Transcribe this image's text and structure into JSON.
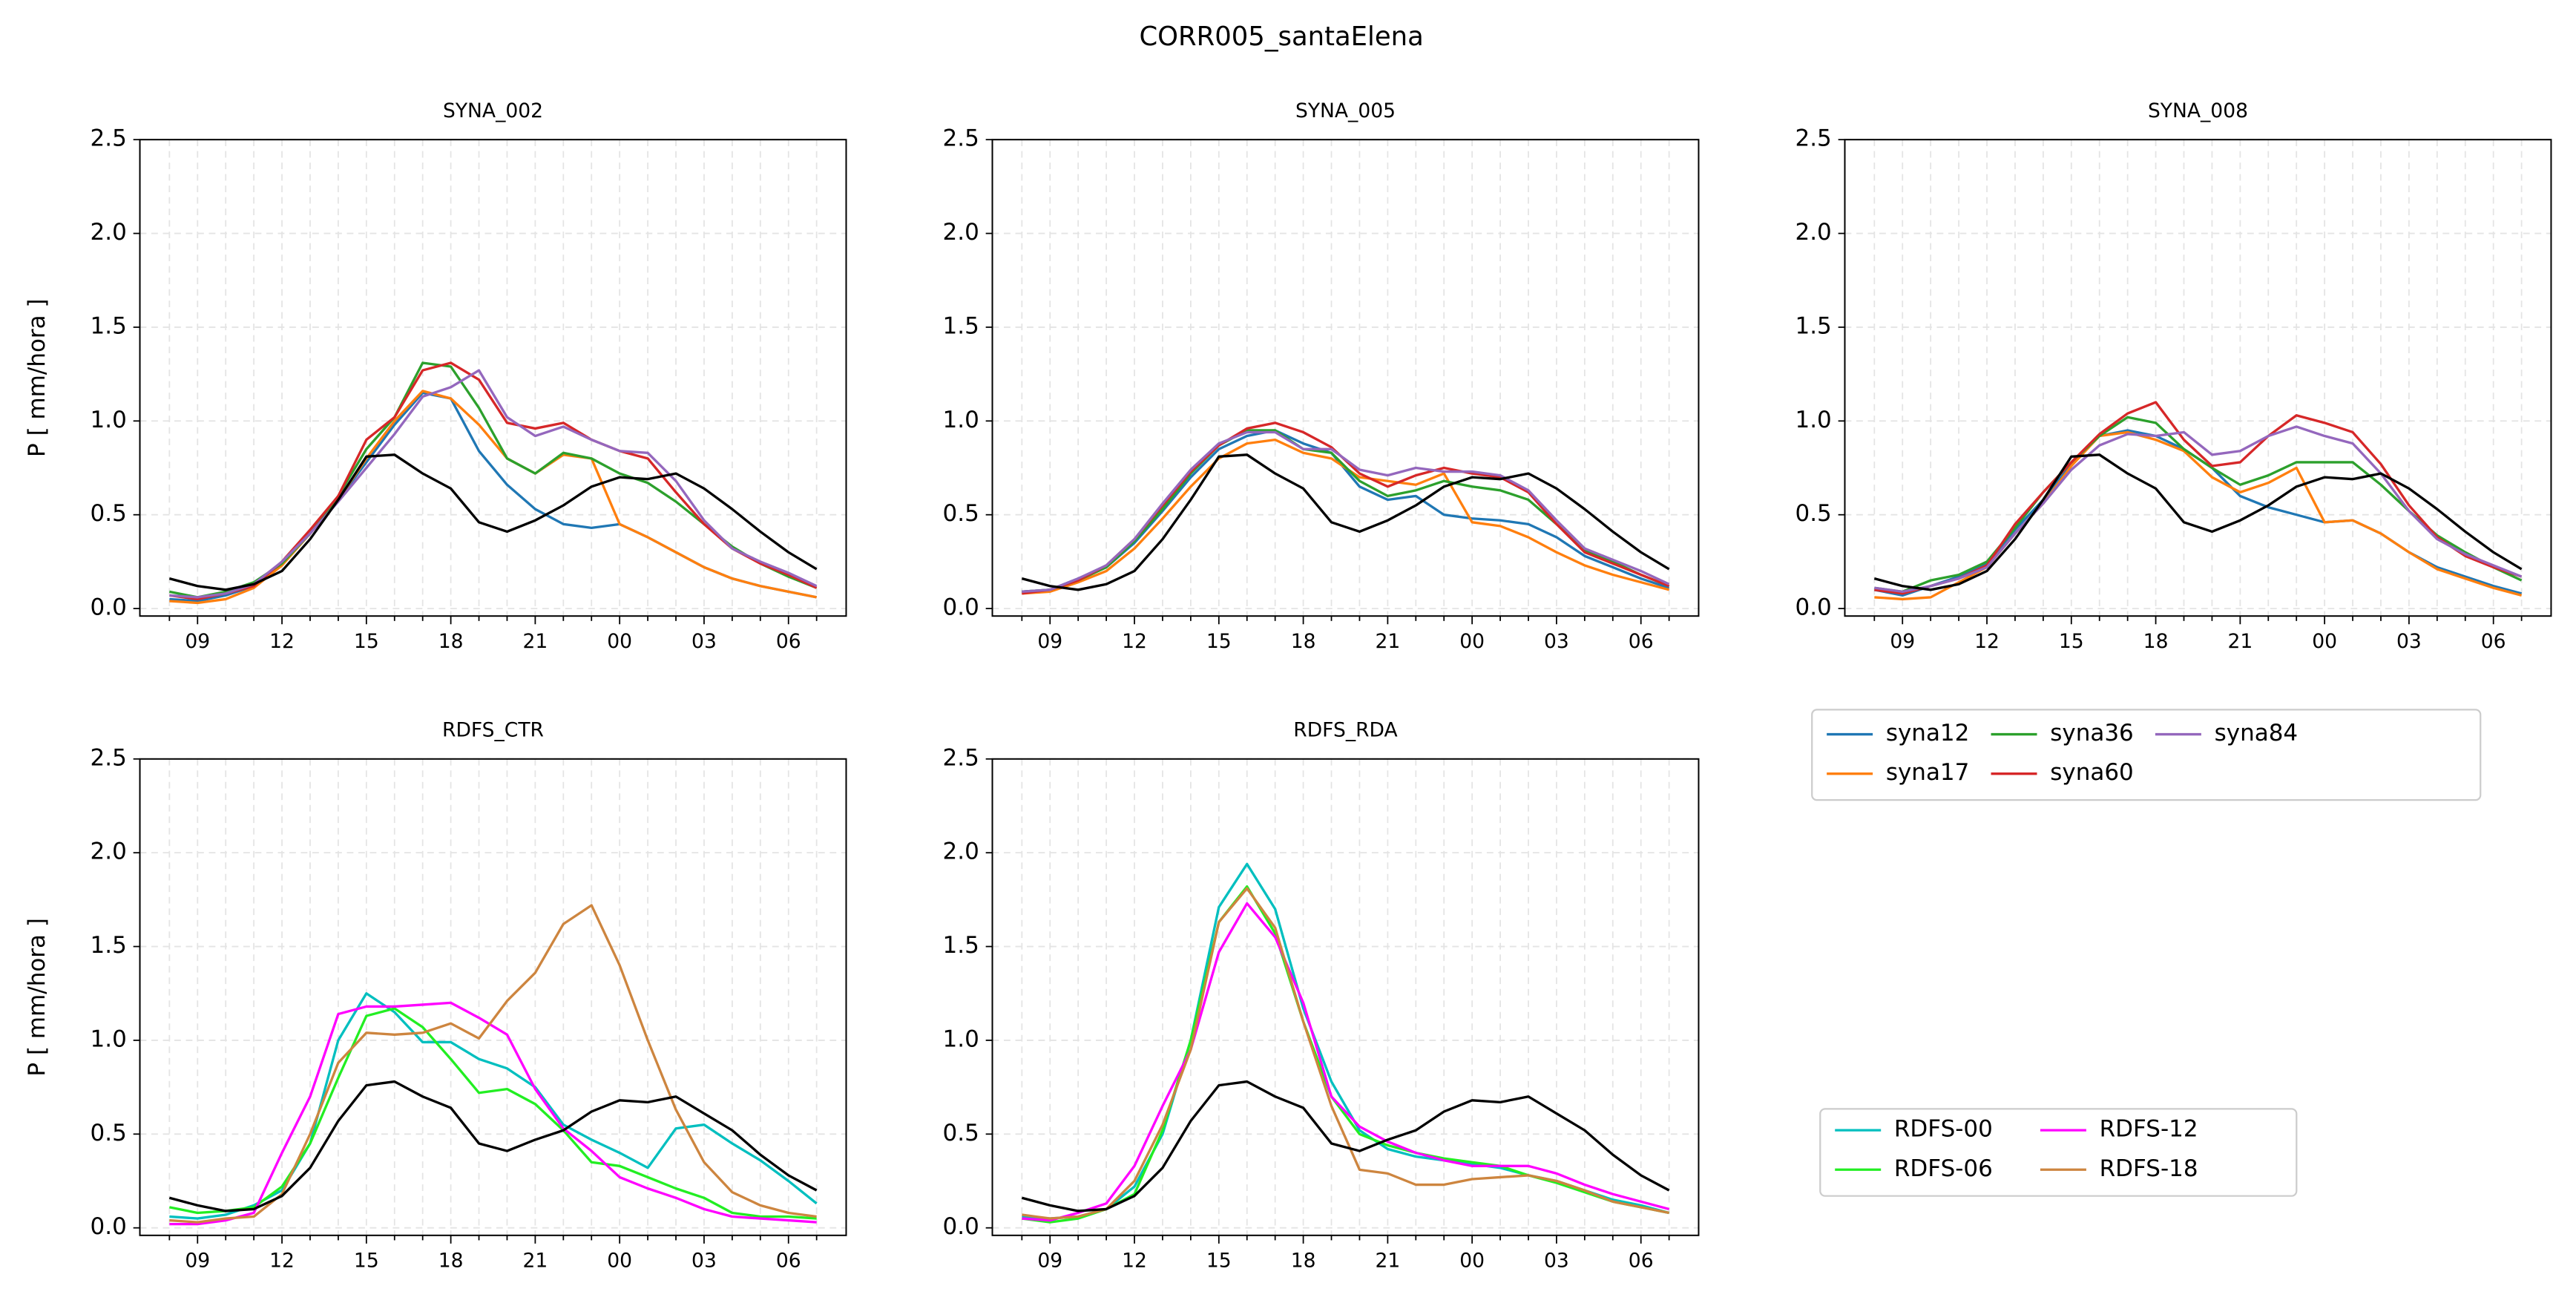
{
  "title": "CORR005_santaElena",
  "chart_data": [
    {
      "type": "line",
      "title": "SYNA_002",
      "y_label": "P [ mm/hora ]",
      "categories": [
        null,
        "09",
        null,
        null,
        "12",
        null,
        null,
        "15",
        null,
        null,
        "18",
        null,
        null,
        "21",
        null,
        null,
        "00",
        null,
        null,
        "03",
        null,
        null,
        "06",
        null
      ],
      "ylim": [
        -0.04,
        2.5
      ],
      "yticks": [
        {
          "value": 0,
          "label": "0.0"
        },
        0.5,
        {
          "value": 1,
          "label": "1.0"
        },
        1.5,
        {
          "value": 2,
          "label": "2.0"
        },
        2.5
      ],
      "grid": true,
      "series": [
        {
          "name": "syna12",
          "color": "#1f77b4",
          "values": [
            0.05,
            0.04,
            0.07,
            0.12,
            0.24,
            0.4,
            0.58,
            0.78,
            0.98,
            1.15,
            1.12,
            0.84,
            0.66,
            0.53,
            0.45,
            0.43,
            0.45,
            0.38,
            0.3,
            0.22,
            0.16,
            0.12,
            0.09,
            0.06
          ]
        },
        {
          "name": "syna17",
          "color": "#ff7f0e",
          "values": [
            0.04,
            0.03,
            0.05,
            0.11,
            0.23,
            0.4,
            0.58,
            0.8,
            1.0,
            1.16,
            1.12,
            0.98,
            0.8,
            0.72,
            0.82,
            0.8,
            0.45,
            0.38,
            0.3,
            0.22,
            0.16,
            0.12,
            0.09,
            0.06
          ]
        },
        {
          "name": "syna36",
          "color": "#2ca02c",
          "values": [
            0.09,
            0.06,
            0.09,
            0.14,
            0.24,
            0.4,
            0.6,
            0.85,
            1.02,
            1.31,
            1.29,
            1.07,
            0.8,
            0.72,
            0.83,
            0.8,
            0.72,
            0.67,
            0.57,
            0.45,
            0.33,
            0.24,
            0.17,
            0.11
          ]
        },
        {
          "name": "syna60",
          "color": "#d62728",
          "values": [
            0.07,
            0.05,
            0.08,
            0.12,
            0.25,
            0.42,
            0.6,
            0.9,
            1.02,
            1.27,
            1.31,
            1.22,
            0.99,
            0.96,
            0.99,
            0.9,
            0.84,
            0.8,
            0.62,
            0.45,
            0.32,
            0.24,
            0.18,
            0.11
          ]
        },
        {
          "name": "syna84",
          "color": "#9467bd",
          "values": [
            0.07,
            0.06,
            0.08,
            0.13,
            0.25,
            0.4,
            0.57,
            0.75,
            0.93,
            1.13,
            1.18,
            1.27,
            1.02,
            0.92,
            0.97,
            0.9,
            0.84,
            0.83,
            0.68,
            0.47,
            0.32,
            0.25,
            0.19,
            0.12
          ]
        },
        {
          "color": "#000000",
          "values": [
            0.16,
            0.12,
            0.1,
            0.13,
            0.2,
            0.37,
            0.58,
            0.81,
            0.82,
            0.72,
            0.64,
            0.46,
            0.41,
            0.47,
            0.55,
            0.65,
            0.7,
            0.69,
            0.72,
            0.64,
            0.53,
            0.41,
            0.3,
            0.21
          ]
        }
      ]
    },
    {
      "type": "line",
      "title": "SYNA_005",
      "categories": [
        null,
        "09",
        null,
        null,
        "12",
        null,
        null,
        "15",
        null,
        null,
        "18",
        null,
        null,
        "21",
        null,
        null,
        "00",
        null,
        null,
        "03",
        null,
        null,
        "06",
        null
      ],
      "ylim": [
        -0.04,
        2.5
      ],
      "yticks": [
        {
          "value": 0,
          "label": "0.0"
        },
        0.5,
        {
          "value": 1,
          "label": "1.0"
        },
        1.5,
        {
          "value": 2,
          "label": "2.0"
        },
        2.5
      ],
      "grid": true,
      "series": [
        {
          "color": "#1f77b4",
          "values": [
            0.09,
            0.1,
            0.16,
            0.22,
            0.35,
            0.52,
            0.7,
            0.85,
            0.92,
            0.95,
            0.88,
            0.83,
            0.65,
            0.58,
            0.6,
            0.5,
            0.48,
            0.47,
            0.45,
            0.38,
            0.28,
            0.22,
            0.16,
            0.11
          ]
        },
        {
          "color": "#ff7f0e",
          "values": [
            0.08,
            0.09,
            0.14,
            0.2,
            0.32,
            0.48,
            0.65,
            0.8,
            0.88,
            0.9,
            0.83,
            0.8,
            0.7,
            0.68,
            0.66,
            0.72,
            0.46,
            0.44,
            0.38,
            0.3,
            0.23,
            0.18,
            0.14,
            0.1
          ]
        },
        {
          "color": "#2ca02c",
          "values": [
            0.09,
            0.1,
            0.15,
            0.22,
            0.36,
            0.53,
            0.72,
            0.87,
            0.95,
            0.95,
            0.85,
            0.83,
            0.68,
            0.6,
            0.63,
            0.68,
            0.65,
            0.63,
            0.58,
            0.45,
            0.31,
            0.25,
            0.18,
            0.12
          ]
        },
        {
          "color": "#d62728",
          "values": [
            0.08,
            0.1,
            0.15,
            0.23,
            0.37,
            0.55,
            0.73,
            0.87,
            0.96,
            0.99,
            0.94,
            0.86,
            0.72,
            0.65,
            0.71,
            0.75,
            0.72,
            0.7,
            0.62,
            0.45,
            0.3,
            0.24,
            0.18,
            0.12
          ]
        },
        {
          "color": "#9467bd",
          "values": [
            0.09,
            0.1,
            0.16,
            0.23,
            0.37,
            0.56,
            0.74,
            0.88,
            0.94,
            0.94,
            0.85,
            0.85,
            0.74,
            0.71,
            0.75,
            0.73,
            0.73,
            0.71,
            0.63,
            0.47,
            0.32,
            0.26,
            0.2,
            0.13
          ]
        },
        {
          "color": "#000000",
          "values": [
            0.16,
            0.12,
            0.1,
            0.13,
            0.2,
            0.37,
            0.58,
            0.81,
            0.82,
            0.72,
            0.64,
            0.46,
            0.41,
            0.47,
            0.55,
            0.65,
            0.7,
            0.69,
            0.72,
            0.64,
            0.53,
            0.41,
            0.3,
            0.21
          ]
        }
      ]
    },
    {
      "type": "line",
      "title": "SYNA_008",
      "categories": [
        null,
        "09",
        null,
        null,
        "12",
        null,
        null,
        "15",
        null,
        null,
        "18",
        null,
        null,
        "21",
        null,
        null,
        "00",
        null,
        null,
        "03",
        null,
        null,
        "06",
        null
      ],
      "ylim": [
        -0.04,
        2.5
      ],
      "yticks": [
        {
          "value": 0,
          "label": "0.0"
        },
        0.5,
        {
          "value": 1,
          "label": "1.0"
        },
        1.5,
        {
          "value": 2,
          "label": "2.0"
        },
        2.5
      ],
      "grid": true,
      "series": [
        {
          "color": "#1f77b4",
          "values": [
            0.1,
            0.07,
            0.12,
            0.17,
            0.24,
            0.42,
            0.58,
            0.77,
            0.92,
            0.95,
            0.92,
            0.85,
            0.75,
            0.6,
            0.54,
            0.5,
            0.46,
            0.47,
            0.4,
            0.3,
            0.22,
            0.17,
            0.12,
            0.08
          ]
        },
        {
          "color": "#ff7f0e",
          "values": [
            0.06,
            0.05,
            0.06,
            0.14,
            0.22,
            0.4,
            0.56,
            0.76,
            0.92,
            0.94,
            0.9,
            0.84,
            0.7,
            0.62,
            0.67,
            0.75,
            0.46,
            0.47,
            0.4,
            0.3,
            0.21,
            0.16,
            0.11,
            0.07
          ]
        },
        {
          "color": "#2ca02c",
          "values": [
            0.11,
            0.09,
            0.15,
            0.18,
            0.25,
            0.43,
            0.62,
            0.78,
            0.92,
            1.02,
            0.99,
            0.85,
            0.75,
            0.66,
            0.71,
            0.78,
            0.78,
            0.78,
            0.66,
            0.52,
            0.39,
            0.3,
            0.22,
            0.15
          ]
        },
        {
          "color": "#d62728",
          "values": [
            0.1,
            0.08,
            0.12,
            0.16,
            0.23,
            0.45,
            0.62,
            0.78,
            0.93,
            1.04,
            1.1,
            0.9,
            0.76,
            0.78,
            0.92,
            1.03,
            0.99,
            0.94,
            0.77,
            0.55,
            0.38,
            0.28,
            0.22,
            0.17
          ]
        },
        {
          "color": "#9467bd",
          "values": [
            0.11,
            0.09,
            0.12,
            0.16,
            0.22,
            0.4,
            0.56,
            0.74,
            0.87,
            0.93,
            0.92,
            0.94,
            0.82,
            0.84,
            0.92,
            0.97,
            0.92,
            0.88,
            0.72,
            0.52,
            0.37,
            0.29,
            0.23,
            0.17
          ]
        },
        {
          "color": "#000000",
          "values": [
            0.16,
            0.12,
            0.1,
            0.13,
            0.2,
            0.37,
            0.58,
            0.81,
            0.82,
            0.72,
            0.64,
            0.46,
            0.41,
            0.47,
            0.55,
            0.65,
            0.7,
            0.69,
            0.72,
            0.64,
            0.53,
            0.41,
            0.3,
            0.21
          ]
        }
      ]
    },
    {
      "type": "line",
      "title": "RDFS_CTR",
      "y_label": "P [ mm/hora ]",
      "categories": [
        null,
        "09",
        null,
        null,
        "12",
        null,
        null,
        "15",
        null,
        null,
        "18",
        null,
        null,
        "21",
        null,
        null,
        "00",
        null,
        null,
        "03",
        null,
        null,
        "06",
        null
      ],
      "ylim": [
        -0.04,
        2.5
      ],
      "yticks": [
        {
          "value": 0,
          "label": "0.0"
        },
        0.5,
        {
          "value": 1,
          "label": "1.0"
        },
        1.5,
        {
          "value": 2,
          "label": "2.0"
        },
        2.5
      ],
      "grid": true,
      "series": [
        {
          "name": "RDFS-00",
          "color": "#00bfbf",
          "values": [
            0.06,
            0.05,
            0.07,
            0.12,
            0.2,
            0.45,
            1.0,
            1.25,
            1.15,
            0.99,
            0.99,
            0.9,
            0.85,
            0.75,
            0.55,
            0.47,
            0.4,
            0.32,
            0.53,
            0.55,
            0.45,
            0.36,
            0.25,
            0.13
          ]
        },
        {
          "name": "RDFS-06",
          "color": "#22ee22",
          "values": [
            0.11,
            0.08,
            0.09,
            0.11,
            0.22,
            0.45,
            0.8,
            1.13,
            1.17,
            1.07,
            0.9,
            0.72,
            0.74,
            0.66,
            0.52,
            0.35,
            0.33,
            0.27,
            0.21,
            0.16,
            0.08,
            0.06,
            0.06,
            0.05
          ]
        },
        {
          "name": "RDFS-12",
          "color": "#ff00ff",
          "values": [
            0.02,
            0.02,
            0.04,
            0.08,
            0.4,
            0.7,
            1.14,
            1.18,
            1.18,
            1.19,
            1.2,
            1.12,
            1.03,
            0.74,
            0.53,
            0.41,
            0.27,
            0.21,
            0.16,
            0.1,
            0.06,
            0.05,
            0.04,
            0.03
          ]
        },
        {
          "name": "RDFS-18",
          "color": "#cd853f",
          "values": [
            0.04,
            0.03,
            0.05,
            0.06,
            0.18,
            0.5,
            0.88,
            1.04,
            1.03,
            1.04,
            1.09,
            1.01,
            1.21,
            1.36,
            1.62,
            1.72,
            1.4,
            1.0,
            0.63,
            0.35,
            0.19,
            0.12,
            0.08,
            0.06
          ]
        },
        {
          "color": "#000000",
          "values": [
            0.16,
            0.12,
            0.09,
            0.1,
            0.17,
            0.32,
            0.57,
            0.76,
            0.78,
            0.7,
            0.64,
            0.45,
            0.41,
            0.47,
            0.52,
            0.62,
            0.68,
            0.67,
            0.7,
            0.61,
            0.52,
            0.39,
            0.28,
            0.2
          ]
        }
      ]
    },
    {
      "type": "line",
      "title": "RDFS_RDA",
      "categories": [
        null,
        "09",
        null,
        null,
        "12",
        null,
        null,
        "15",
        null,
        null,
        "18",
        null,
        null,
        "21",
        null,
        null,
        "00",
        null,
        null,
        "03",
        null,
        null,
        "06",
        null
      ],
      "ylim": [
        -0.04,
        2.5
      ],
      "yticks": [
        {
          "value": 0,
          "label": "0.0"
        },
        0.5,
        {
          "value": 1,
          "label": "1.0"
        },
        1.5,
        {
          "value": 2,
          "label": "2.0"
        },
        2.5
      ],
      "grid": true,
      "series": [
        {
          "color": "#00bfbf",
          "values": [
            0.06,
            0.05,
            0.06,
            0.1,
            0.22,
            0.5,
            1.0,
            1.71,
            1.94,
            1.7,
            1.17,
            0.78,
            0.52,
            0.42,
            0.38,
            0.36,
            0.34,
            0.32,
            0.28,
            0.25,
            0.2,
            0.15,
            0.12,
            0.08
          ]
        },
        {
          "color": "#22ee22",
          "values": [
            0.05,
            0.03,
            0.05,
            0.1,
            0.18,
            0.52,
            1.0,
            1.63,
            1.82,
            1.57,
            1.1,
            0.7,
            0.5,
            0.44,
            0.4,
            0.37,
            0.35,
            0.33,
            0.28,
            0.24,
            0.19,
            0.14,
            0.11,
            0.08
          ]
        },
        {
          "color": "#ff00ff",
          "values": [
            0.05,
            0.04,
            0.08,
            0.13,
            0.33,
            0.65,
            0.95,
            1.47,
            1.73,
            1.55,
            1.2,
            0.7,
            0.54,
            0.46,
            0.4,
            0.36,
            0.33,
            0.33,
            0.33,
            0.29,
            0.23,
            0.18,
            0.14,
            0.1
          ]
        },
        {
          "color": "#cd853f",
          "values": [
            0.07,
            0.05,
            0.06,
            0.1,
            0.25,
            0.55,
            0.95,
            1.63,
            1.81,
            1.6,
            1.1,
            0.65,
            0.31,
            0.29,
            0.23,
            0.23,
            0.26,
            0.27,
            0.28,
            0.25,
            0.2,
            0.14,
            0.11,
            0.08
          ]
        },
        {
          "color": "#000000",
          "values": [
            0.16,
            0.12,
            0.09,
            0.1,
            0.17,
            0.32,
            0.57,
            0.76,
            0.78,
            0.7,
            0.64,
            0.45,
            0.41,
            0.47,
            0.52,
            0.62,
            0.68,
            0.67,
            0.7,
            0.61,
            0.52,
            0.39,
            0.28,
            0.2
          ]
        }
      ]
    }
  ]
}
